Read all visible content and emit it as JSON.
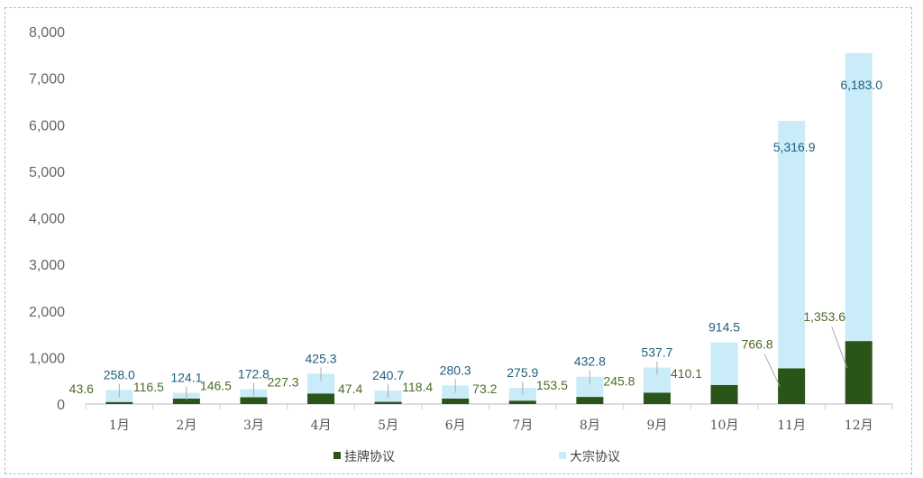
{
  "chart_data": {
    "type": "bar",
    "stacked": true,
    "categories": [
      "1月",
      "2月",
      "3月",
      "4月",
      "5月",
      "6月",
      "7月",
      "8月",
      "9月",
      "10月",
      "11月",
      "12月"
    ],
    "series": [
      {
        "name": "挂牌协议",
        "color": "#2a5418",
        "values": [
          43.6,
          116.5,
          146.5,
          227.3,
          47.4,
          118.4,
          73.2,
          153.5,
          245.8,
          410.1,
          766.8,
          1353.6
        ],
        "labels": [
          "43.6",
          "116.5",
          "146.5",
          "227.3",
          "47.4",
          "118.4",
          "73.2",
          "153.5",
          "245.8",
          "410.1",
          "766.8",
          "1,353.6"
        ]
      },
      {
        "name": "大宗协议",
        "color": "#c9ecf8",
        "values": [
          258.0,
          124.1,
          172.8,
          425.3,
          240.7,
          280.3,
          275.9,
          432.8,
          537.7,
          914.5,
          5316.9,
          6183.0
        ],
        "labels": [
          "258.0",
          "124.1",
          "172.8",
          "425.3",
          "240.7",
          "280.3",
          "275.9",
          "432.8",
          "537.7",
          "914.5",
          "5,316.9",
          "6,183.0"
        ]
      }
    ],
    "ylim": [
      0,
      8000
    ],
    "yticks": [
      "0",
      "1,000",
      "2,000",
      "3,000",
      "4,000",
      "5,000",
      "6,000",
      "7,000",
      "8,000"
    ],
    "grid": false,
    "legend": "bottom"
  }
}
